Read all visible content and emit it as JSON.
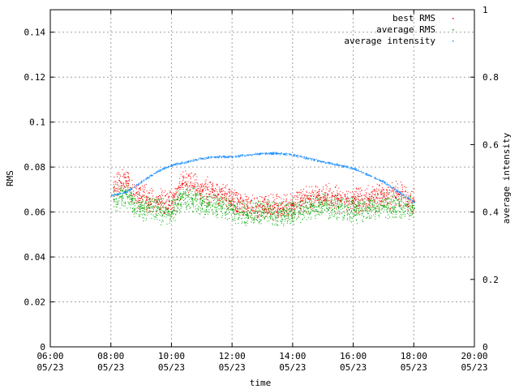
{
  "chart_data": {
    "type": "scatter",
    "xlabel": "time",
    "ylabel": "RMS",
    "y2label": "average intensity",
    "xlim": [
      "05/23 06:00",
      "05/23 20:00"
    ],
    "ylim": [
      0,
      0.15
    ],
    "y2lim": [
      0,
      1
    ],
    "x_ticks": [
      {
        "time": "06:00",
        "date": "05/23"
      },
      {
        "time": "08:00",
        "date": "05/23"
      },
      {
        "time": "10:00",
        "date": "05/23"
      },
      {
        "time": "12:00",
        "date": "05/23"
      },
      {
        "time": "14:00",
        "date": "05/23"
      },
      {
        "time": "16:00",
        "date": "05/23"
      },
      {
        "time": "18:00",
        "date": "05/23"
      },
      {
        "time": "20:00",
        "date": "05/23"
      }
    ],
    "y_ticks": [
      "0",
      "0.02",
      "0.04",
      "0.06",
      "0.08",
      "0.1",
      "0.12",
      "0.14"
    ],
    "y2_ticks": [
      "0",
      "0.2",
      "0.4",
      "0.6",
      "0.8",
      "1"
    ],
    "grid": true,
    "legend_position": "top-right",
    "series": [
      {
        "name": "best RMS",
        "color": "#ff0000",
        "axis": "left",
        "points": [
          [
            "08:05",
            0.071
          ],
          [
            "08:20",
            0.073
          ],
          [
            "08:30",
            0.074
          ],
          [
            "08:45",
            0.068
          ],
          [
            "09:00",
            0.067
          ],
          [
            "09:15",
            0.066
          ],
          [
            "09:30",
            0.065
          ],
          [
            "09:45",
            0.064
          ],
          [
            "10:00",
            0.064
          ],
          [
            "10:20",
            0.073
          ],
          [
            "10:40",
            0.072
          ],
          [
            "11:00",
            0.07
          ],
          [
            "11:20",
            0.069
          ],
          [
            "11:40",
            0.068
          ],
          [
            "12:00",
            0.066
          ],
          [
            "12:30",
            0.062
          ],
          [
            "13:00",
            0.063
          ],
          [
            "13:30",
            0.062
          ],
          [
            "14:00",
            0.063
          ],
          [
            "14:30",
            0.066
          ],
          [
            "15:00",
            0.067
          ],
          [
            "15:30",
            0.066
          ],
          [
            "16:00",
            0.065
          ],
          [
            "16:30",
            0.066
          ],
          [
            "17:00",
            0.067
          ],
          [
            "17:30",
            0.068
          ],
          [
            "18:00",
            0.065
          ]
        ]
      },
      {
        "name": "average RMS",
        "color": "#00aa00",
        "axis": "left",
        "points": [
          [
            "08:05",
            0.066
          ],
          [
            "08:20",
            0.067
          ],
          [
            "08:30",
            0.068
          ],
          [
            "08:45",
            0.064
          ],
          [
            "09:00",
            0.062
          ],
          [
            "09:15",
            0.062
          ],
          [
            "09:30",
            0.061
          ],
          [
            "09:45",
            0.06
          ],
          [
            "10:00",
            0.06
          ],
          [
            "10:20",
            0.067
          ],
          [
            "10:40",
            0.066
          ],
          [
            "11:00",
            0.064
          ],
          [
            "11:20",
            0.063
          ],
          [
            "11:40",
            0.062
          ],
          [
            "12:00",
            0.061
          ],
          [
            "12:30",
            0.059
          ],
          [
            "13:00",
            0.06
          ],
          [
            "13:30",
            0.059
          ],
          [
            "14:00",
            0.06
          ],
          [
            "14:30",
            0.062
          ],
          [
            "15:00",
            0.063
          ],
          [
            "15:30",
            0.062
          ],
          [
            "16:00",
            0.061
          ],
          [
            "16:30",
            0.062
          ],
          [
            "17:00",
            0.063
          ],
          [
            "17:30",
            0.063
          ],
          [
            "18:00",
            0.062
          ]
        ]
      },
      {
        "name": "average intensity",
        "color": "#1e90ff",
        "axis": "right",
        "points": [
          [
            "08:00",
            0.45
          ],
          [
            "08:30",
            0.46
          ],
          [
            "09:00",
            0.49
          ],
          [
            "09:30",
            0.52
          ],
          [
            "10:00",
            0.54
          ],
          [
            "10:30",
            0.55
          ],
          [
            "11:00",
            0.56
          ],
          [
            "11:30",
            0.565
          ],
          [
            "12:00",
            0.565
          ],
          [
            "12:30",
            0.57
          ],
          [
            "13:00",
            0.575
          ],
          [
            "13:30",
            0.575
          ],
          [
            "14:00",
            0.57
          ],
          [
            "14:30",
            0.56
          ],
          [
            "15:00",
            0.55
          ],
          [
            "15:30",
            0.54
          ],
          [
            "16:00",
            0.53
          ],
          [
            "16:30",
            0.51
          ],
          [
            "17:00",
            0.49
          ],
          [
            "17:30",
            0.46
          ],
          [
            "18:00",
            0.43
          ]
        ]
      }
    ]
  }
}
